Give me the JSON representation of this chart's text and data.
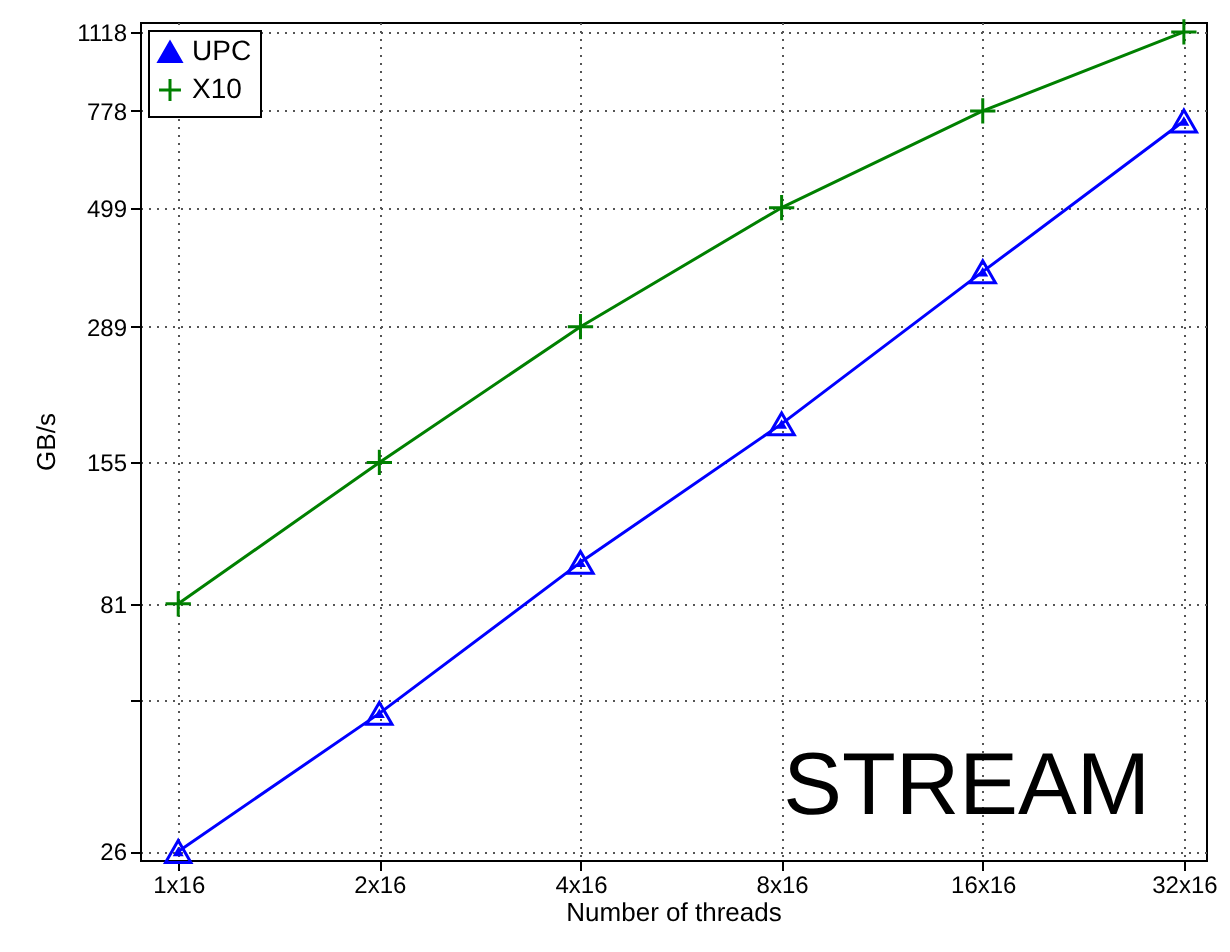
{
  "chart_data": {
    "type": "line",
    "xlabel": "Number of threads",
    "ylabel": "GB/s",
    "categories": [
      "1x16",
      "2x16",
      "4x16",
      "8x16",
      "16x16",
      "32x16"
    ],
    "series": [
      {
        "name": "UPC",
        "color": "#0000ff",
        "marker": "triangle",
        "values": [
          26,
          49,
          98,
          185,
          372,
          743
        ]
      },
      {
        "name": "X10",
        "color": "#008000",
        "marker": "cross",
        "values": [
          81,
          155,
          289,
          499,
          778,
          1118
        ]
      }
    ],
    "log": "y",
    "ylim": [
      25,
      1170
    ],
    "yticks": [
      26,
      {
        "value": 52,
        "label": null
      },
      81,
      155,
      289,
      499,
      778,
      1118
    ],
    "grid": true,
    "legend": "top left",
    "line_style": "solid",
    "annotations": [
      "STREAM"
    ]
  }
}
